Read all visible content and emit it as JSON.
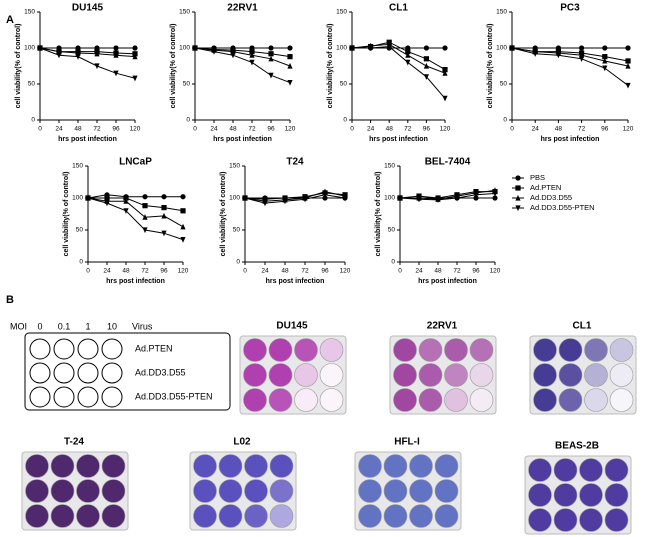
{
  "panel_a_label": "A",
  "legend": [
    "PBS",
    "Ad.PTEN",
    "Ad.DD3.D55",
    "Ad.DD3.D55-PTEN"
  ],
  "chart_data": [
    {
      "type": "line",
      "title": "DU145",
      "x_label": "hrs post infection",
      "y_label": "cell viability(% of control)",
      "color": "#000000",
      "x": [
        0,
        24,
        48,
        72,
        96,
        120
      ],
      "xlim": [
        0,
        120
      ],
      "xticks": [
        0,
        24,
        48,
        72,
        96,
        120
      ],
      "ylim": [
        0,
        150
      ],
      "yticks": [
        0,
        50,
        100,
        150
      ],
      "series": [
        {
          "marker": "circle",
          "values": [
            100,
            100,
            100,
            100,
            100,
            100
          ]
        },
        {
          "marker": "square",
          "values": [
            100,
            95,
            95,
            95,
            93,
            92
          ]
        },
        {
          "marker": "triangle-up",
          "values": [
            100,
            95,
            93,
            92,
            90,
            88
          ]
        },
        {
          "marker": "triangle-down",
          "values": [
            100,
            90,
            88,
            75,
            65,
            58
          ]
        }
      ]
    },
    {
      "type": "line",
      "title": "22RV1",
      "x_label": "hrs post infection",
      "y_label": "cell viability(% of control)",
      "color": "#000000",
      "x": [
        0,
        24,
        48,
        72,
        96,
        120
      ],
      "xlim": [
        0,
        120
      ],
      "xticks": [
        0,
        24,
        48,
        72,
        96,
        120
      ],
      "ylim": [
        0,
        150
      ],
      "yticks": [
        0,
        50,
        100,
        150
      ],
      "series": [
        {
          "marker": "circle",
          "values": [
            100,
            100,
            100,
            100,
            100,
            100
          ]
        },
        {
          "marker": "square",
          "values": [
            100,
            98,
            97,
            95,
            92,
            88
          ]
        },
        {
          "marker": "triangle-up",
          "values": [
            100,
            97,
            95,
            90,
            85,
            75
          ]
        },
        {
          "marker": "triangle-down",
          "values": [
            100,
            95,
            90,
            80,
            62,
            52
          ]
        }
      ]
    },
    {
      "type": "line",
      "title": "CL1",
      "x_label": "hrs post infection",
      "y_label": "cell viability(% of control)",
      "color": "#000000",
      "x": [
        0,
        24,
        48,
        72,
        96,
        120
      ],
      "xlim": [
        0,
        120
      ],
      "xticks": [
        0,
        24,
        48,
        72,
        96,
        120
      ],
      "ylim": [
        0,
        150
      ],
      "yticks": [
        0,
        50,
        100,
        150
      ],
      "series": [
        {
          "marker": "circle",
          "values": [
            100,
            100,
            100,
            100,
            100,
            100
          ]
        },
        {
          "marker": "square",
          "values": [
            100,
            102,
            108,
            95,
            85,
            70
          ]
        },
        {
          "marker": "triangle-up",
          "values": [
            100,
            103,
            105,
            90,
            75,
            65
          ]
        },
        {
          "marker": "triangle-down",
          "values": [
            100,
            100,
            102,
            80,
            60,
            30
          ]
        }
      ]
    },
    {
      "type": "line",
      "title": "PC3",
      "x_label": "hrs post infection",
      "y_label": "cell viability(% of control)",
      "color": "#000000",
      "x": [
        0,
        24,
        48,
        72,
        96,
        120
      ],
      "xlim": [
        0,
        120
      ],
      "xticks": [
        0,
        24,
        48,
        72,
        96,
        120
      ],
      "ylim": [
        0,
        150
      ],
      "yticks": [
        0,
        50,
        100,
        150
      ],
      "series": [
        {
          "marker": "circle",
          "values": [
            100,
            100,
            100,
            100,
            100,
            100
          ]
        },
        {
          "marker": "square",
          "values": [
            100,
            95,
            95,
            93,
            88,
            82
          ]
        },
        {
          "marker": "triangle-up",
          "values": [
            100,
            95,
            93,
            90,
            82,
            75
          ]
        },
        {
          "marker": "triangle-down",
          "values": [
            100,
            92,
            90,
            85,
            72,
            48
          ]
        }
      ]
    },
    {
      "type": "line",
      "title": "LNCaP",
      "x_label": "hrs post infection",
      "y_label": "cell viability(% of control)",
      "color": "#000000",
      "x": [
        0,
        24,
        48,
        72,
        96,
        120
      ],
      "xlim": [
        0,
        120
      ],
      "xticks": [
        0,
        24,
        48,
        72,
        96,
        120
      ],
      "ylim": [
        0,
        150
      ],
      "yticks": [
        0,
        50,
        100,
        150
      ],
      "series": [
        {
          "marker": "circle",
          "values": [
            100,
            105,
            102,
            102,
            102,
            102
          ]
        },
        {
          "marker": "square",
          "values": [
            100,
            100,
            100,
            88,
            85,
            80
          ]
        },
        {
          "marker": "triangle-up",
          "values": [
            100,
            95,
            95,
            70,
            72,
            55
          ]
        },
        {
          "marker": "triangle-down",
          "values": [
            100,
            92,
            80,
            50,
            45,
            35
          ]
        }
      ]
    },
    {
      "type": "line",
      "title": "T24",
      "x_label": "hrs post infection",
      "y_label": "cell viability(% of control)",
      "color": "#000000",
      "x": [
        0,
        24,
        48,
        72,
        96,
        120
      ],
      "xlim": [
        0,
        120
      ],
      "xticks": [
        0,
        24,
        48,
        72,
        96,
        120
      ],
      "ylim": [
        0,
        150
      ],
      "yticks": [
        0,
        50,
        100,
        150
      ],
      "series": [
        {
          "marker": "circle",
          "values": [
            100,
            100,
            100,
            100,
            100,
            100
          ]
        },
        {
          "marker": "square",
          "values": [
            100,
            98,
            100,
            102,
            108,
            105
          ]
        },
        {
          "marker": "triangle-up",
          "values": [
            100,
            95,
            97,
            100,
            110,
            103
          ]
        },
        {
          "marker": "triangle-down",
          "values": [
            100,
            92,
            95,
            98,
            105,
            100
          ]
        }
      ]
    },
    {
      "type": "line",
      "title": "BEL-7404",
      "x_label": "hrs post infection",
      "y_label": "cell viability(% of control)",
      "color": "#000000",
      "x": [
        0,
        24,
        48,
        72,
        96,
        120
      ],
      "xlim": [
        0,
        120
      ],
      "xticks": [
        0,
        24,
        48,
        72,
        96,
        120
      ],
      "ylim": [
        0,
        150
      ],
      "yticks": [
        0,
        50,
        100,
        150
      ],
      "series": [
        {
          "marker": "circle",
          "values": [
            100,
            100,
            100,
            100,
            100,
            100
          ]
        },
        {
          "marker": "square",
          "values": [
            100,
            103,
            100,
            105,
            110,
            110
          ]
        },
        {
          "marker": "triangle-up",
          "values": [
            100,
            100,
            98,
            103,
            108,
            112
          ]
        },
        {
          "marker": "triangle-down",
          "values": [
            100,
            98,
            97,
            100,
            105,
            107
          ]
        }
      ]
    }
  ],
  "panel_b": {
    "label": "B",
    "moi_label": "MOI",
    "doses": [
      "0",
      "0.1",
      "1",
      "10"
    ],
    "virus_label": "Virus",
    "viruses": [
      "Ad.PTEN",
      "Ad.DD3.D55",
      "Ad.DD3.D55-PTEN"
    ],
    "plates": [
      "DU145",
      "22RV1",
      "CL1",
      "T-24",
      "L02",
      "HFL-I",
      "BEAS-2B"
    ]
  }
}
